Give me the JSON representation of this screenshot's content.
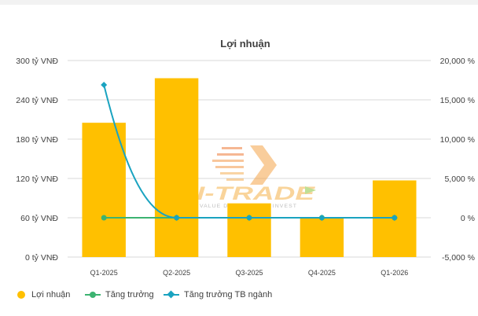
{
  "chart_data": {
    "type": "bar",
    "title": "Lợi nhuận",
    "categories": [
      "Q1-2025",
      "Q2-2025",
      "Q3-2025",
      "Q4-2025",
      "Q1-2026"
    ],
    "series": [
      {
        "name": "Lợi nhuận",
        "type": "bar",
        "axis": "left",
        "values": [
          205,
          273,
          82,
          61,
          117
        ]
      },
      {
        "name": "Tăng trưởng",
        "type": "line",
        "axis": "right",
        "values": [
          0,
          0,
          0,
          0,
          0
        ]
      },
      {
        "name": "Tăng trưởng TB ngành",
        "type": "line",
        "axis": "right",
        "smooth": true,
        "values": [
          16900,
          0,
          0,
          0,
          0
        ]
      }
    ],
    "y_left": {
      "ticks": [
        "300 tỷ VNĐ",
        "240 tỷ VNĐ",
        "180 tỷ VNĐ",
        "120 tỷ VNĐ",
        "60 tỷ VNĐ",
        "0 tỷ VNĐ"
      ],
      "ylim": [
        0,
        300
      ]
    },
    "y_right": {
      "ticks": [
        "20,000 %",
        "15,000 %",
        "10,000 %",
        "5,000 %",
        "0 %",
        "-5,000 %"
      ],
      "ylim": [
        -5000,
        20000
      ]
    },
    "grid": true,
    "legend_position": "bottom-left",
    "colors": {
      "bar": "#ffc000",
      "growth": "#3cb371",
      "industry": "#1aa3c0",
      "grid": "#d9d9d9",
      "text": "#404040"
    },
    "watermark": "I-TRADE VALUE DATA - SMART INVEST"
  }
}
